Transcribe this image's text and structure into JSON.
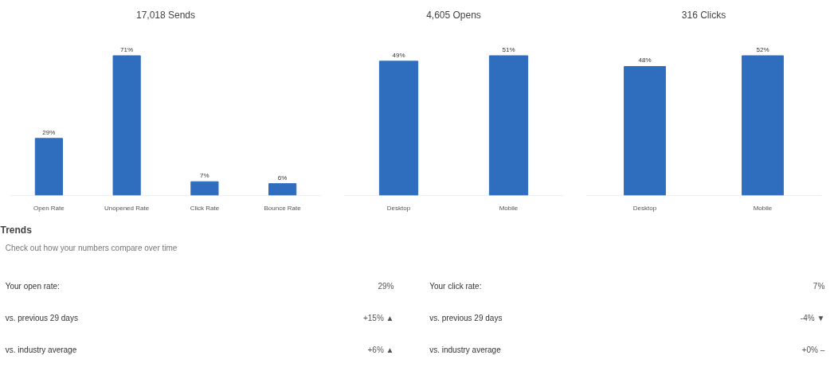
{
  "chart_data": [
    {
      "type": "bar",
      "title": "17,018 Sends",
      "categories": [
        "Open Rate",
        "Unopened Rate",
        "Click Rate",
        "Bounce Rate"
      ],
      "values": [
        29,
        71,
        7,
        6
      ],
      "value_labels": [
        "29%",
        "71%",
        "7%",
        "6%"
      ],
      "color": "#2f6ebf",
      "tick_labels": "x"
    },
    {
      "type": "bar",
      "title": "4,605 Opens",
      "categories": [
        "Desktop",
        "Mobile"
      ],
      "values": [
        49,
        51
      ],
      "value_labels": [
        "49%",
        "51%"
      ],
      "color": "#2f6ebf",
      "tick_labels": "x"
    },
    {
      "type": "bar",
      "title": "316 Clicks",
      "categories": [
        "Desktop",
        "Mobile"
      ],
      "values": [
        48,
        52
      ],
      "value_labels": [
        "48%",
        "52%"
      ],
      "color": "#2f6ebf",
      "tick_labels": "x"
    },
    {
      "type": "other",
      "title": "Trends",
      "subtitle": "Check out how your numbers compare over time",
      "annotations": [
        "Your open rate:",
        "29%",
        "vs. previous 29 days",
        "+15% ▲",
        "vs. industry average",
        "+6% ▲",
        "Your click rate:",
        "7%",
        "vs. previous 29 days",
        "-4% ▼",
        "vs. industry average",
        "+0% –"
      ]
    }
  ]
}
